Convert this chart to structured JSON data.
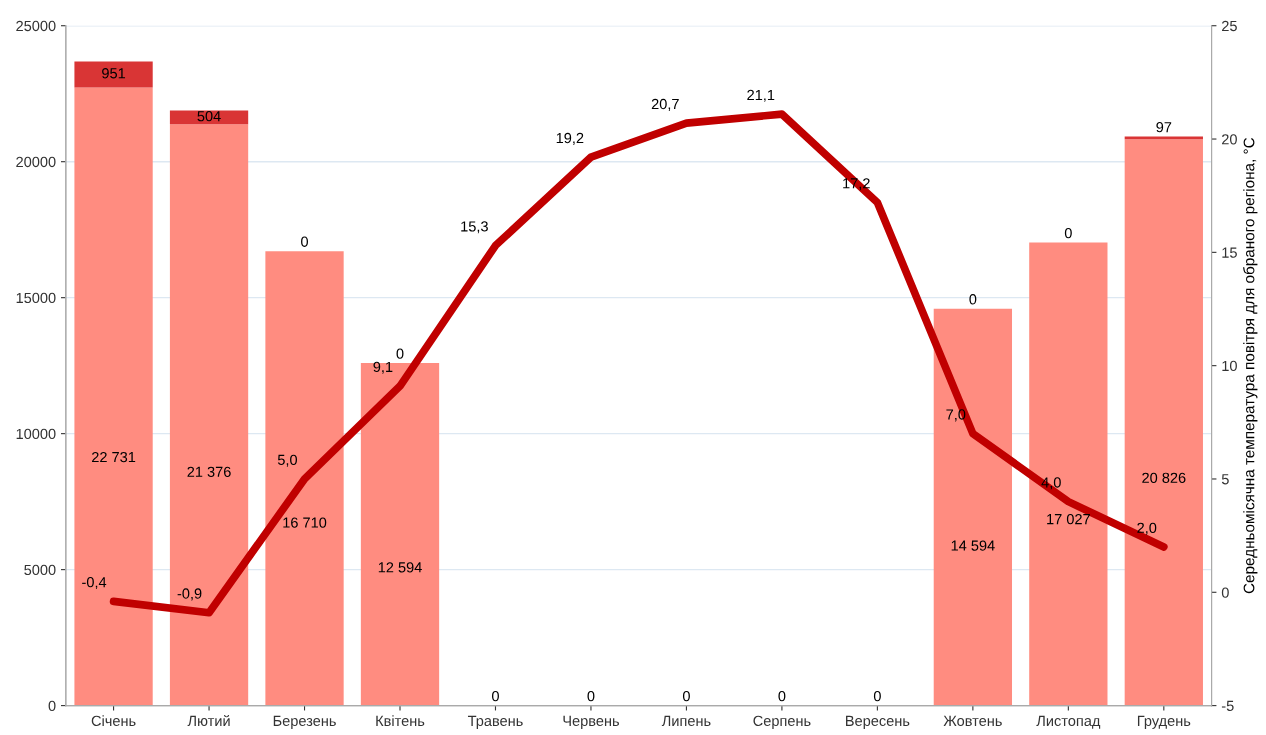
{
  "chart_data": {
    "type": "bar",
    "stacked": true,
    "categories": [
      "Січень",
      "Лютий",
      "Березень",
      "Квітень",
      "Травень",
      "Червень",
      "Липень",
      "Серпень",
      "Вересень",
      "Жовтень",
      "Листопад",
      "Грудень"
    ],
    "series": [
      {
        "color": "#ff8c80",
        "values": [
          22731,
          21376,
          16710,
          12594,
          0,
          0,
          0,
          0,
          0,
          14594,
          17027,
          20826
        ],
        "value_labels": [
          "22 731",
          "21 376",
          "16 710",
          "12 594",
          "0",
          "0",
          "0",
          "0",
          "0",
          "14 594",
          "17 027",
          "20 826"
        ]
      },
      {
        "color": "#d93535",
        "values": [
          951,
          504,
          0,
          0,
          0,
          0,
          0,
          0,
          0,
          0,
          0,
          97
        ],
        "value_labels": [
          "951",
          "504",
          "0",
          "0",
          null,
          null,
          null,
          null,
          null,
          "0",
          "0",
          "97"
        ]
      },
      {
        "type": "line",
        "axis": "y2",
        "color": "#c00000",
        "values": [
          -0.4,
          -0.9,
          5.0,
          9.1,
          15.3,
          19.2,
          20.7,
          21.1,
          17.2,
          7.0,
          4.0,
          2.0
        ],
        "value_labels": [
          "-0,4",
          "-0,9",
          "5,0",
          "9,1",
          "15,3",
          "19,2",
          "20,7",
          "21,1",
          "17,2",
          "7,0",
          "4,0",
          "2,0"
        ]
      }
    ],
    "data_labels": true,
    "ylim": [
      0,
      25000
    ],
    "yticks": [
      0,
      5000,
      10000,
      15000,
      20000,
      25000
    ],
    "y2lim": [
      -5,
      25
    ],
    "y2ticks": [
      -5,
      0,
      5,
      10,
      15,
      20,
      25
    ],
    "y2label": "Середньомісячна температура повітря для обраного регіона, °C",
    "grid": "y",
    "legend": false,
    "line_style": "solid",
    "marker": "none"
  }
}
